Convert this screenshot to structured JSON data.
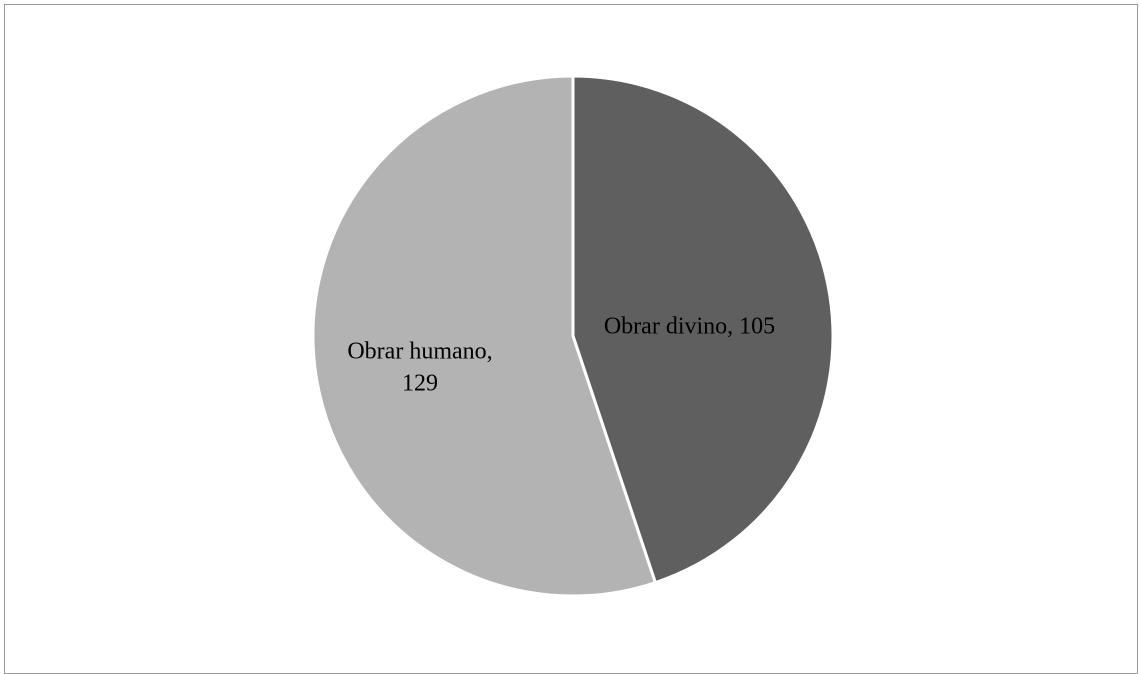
{
  "chart_data": {
    "type": "pie",
    "slices": [
      {
        "label": "Obrar divino",
        "value": 105,
        "color": "#5f5f5f",
        "label_text": [
          "Obrar divino, 105"
        ]
      },
      {
        "label": "Obrar humano",
        "value": 129,
        "color": "#b3b3b3",
        "label_text": [
          "Obrar humano,",
          "129"
        ]
      }
    ],
    "start_angle_deg": 0,
    "direction": "clockwise",
    "separator_color": "#ffffff"
  }
}
